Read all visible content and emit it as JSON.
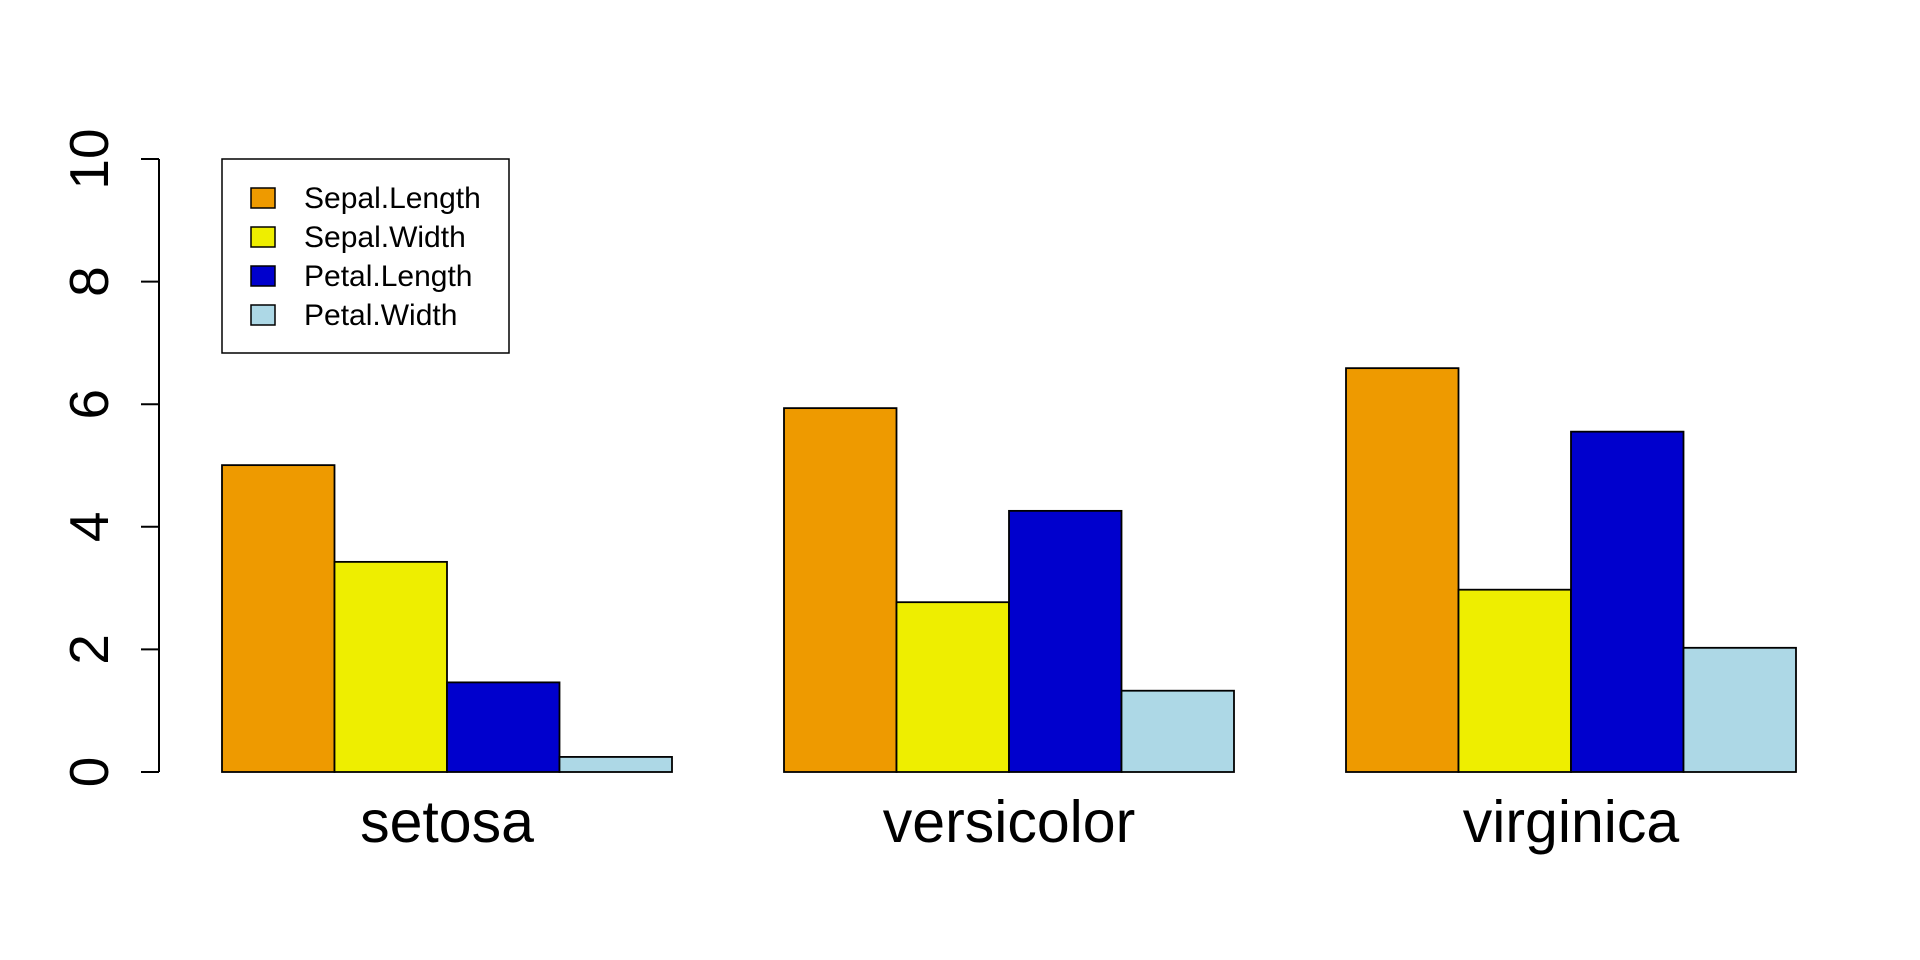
{
  "chart_data": {
    "type": "bar",
    "layout": "grouped",
    "categories": [
      "setosa",
      "versicolor",
      "virginica"
    ],
    "series": [
      {
        "name": "Sepal.Length",
        "color": "#EE9A00",
        "values": [
          5.006,
          5.936,
          6.588
        ]
      },
      {
        "name": "Sepal.Width",
        "color": "#EEEE00",
        "values": [
          3.428,
          2.77,
          2.974
        ]
      },
      {
        "name": "Petal.Length",
        "color": "#0000CD",
        "values": [
          1.462,
          4.26,
          5.552
        ]
      },
      {
        "name": "Petal.Width",
        "color": "#ADD8E6",
        "values": [
          0.246,
          1.326,
          2.026
        ]
      }
    ],
    "ylim": [
      0,
      10
    ],
    "yticks": [
      0,
      2,
      4,
      6,
      8,
      10
    ],
    "legend": {
      "position": "top-left",
      "boxed": true
    },
    "grid": false
  }
}
